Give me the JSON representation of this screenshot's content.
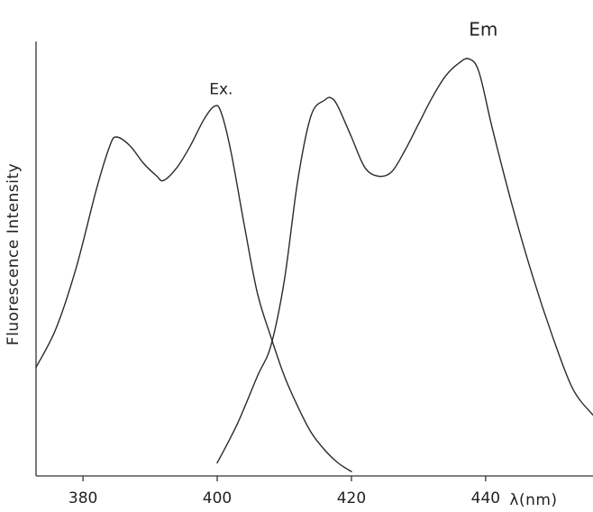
{
  "chart_data": {
    "type": "line",
    "title": "",
    "xlabel": "λ(nm)",
    "ylabel": "Fluorescence  Intensity",
    "xlim": [
      373,
      456
    ],
    "ylim": [
      0,
      100
    ],
    "x_ticks": [
      380,
      400,
      420,
      440
    ],
    "x_tick_labels": [
      "380",
      "400",
      "420",
      "440"
    ],
    "grid": false,
    "legend": "none",
    "series": [
      {
        "name": "Ex.",
        "color": "#2a2a2a",
        "x": [
          373,
          376,
          379,
          382,
          384,
          385,
          387,
          389,
          391,
          392,
          394,
          396,
          398,
          399.5,
          400.5,
          402,
          404,
          406,
          408,
          410,
          412,
          414,
          416,
          418,
          420
        ],
        "y": [
          25,
          34,
          48,
          66,
          76,
          78,
          76,
          72,
          69,
          68,
          71,
          76,
          82,
          85,
          84,
          75,
          58,
          42,
          32,
          23,
          16,
          10,
          6,
          3,
          1
        ]
      },
      {
        "name": "Em",
        "color": "#2a2a2a",
        "x": [
          400,
          403,
          406,
          408,
          410,
          412,
          414,
          416,
          417,
          418,
          420,
          422,
          424,
          426,
          428,
          430,
          432,
          434,
          436,
          437.5,
          439,
          441,
          444,
          447,
          450,
          453,
          456
        ],
        "y": [
          3,
          12,
          23,
          30,
          45,
          68,
          83,
          86.5,
          87,
          85,
          78,
          71,
          69,
          70,
          75,
          81,
          87,
          92,
          95,
          96,
          93,
          80,
          62,
          46,
          32,
          20,
          14
        ]
      }
    ]
  }
}
